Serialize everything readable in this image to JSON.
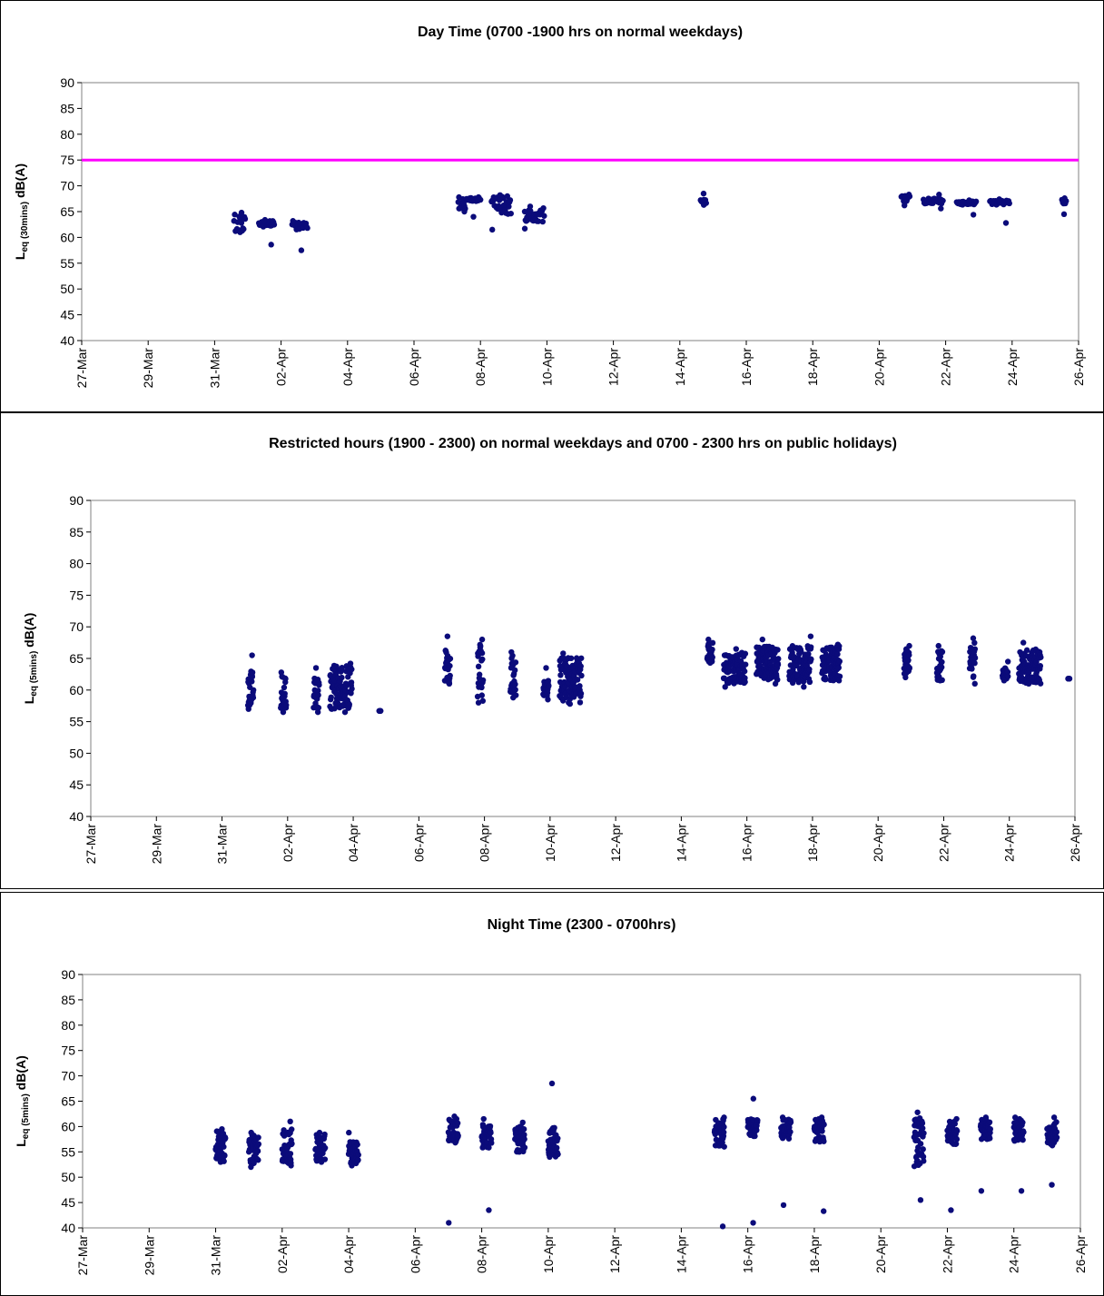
{
  "colors": {
    "points": "#0b0b7a",
    "limit_line": "#ff00ff",
    "axis": "#808080"
  },
  "chart_data": [
    {
      "type": "scatter",
      "title": "Day Time (0700 -1900 hrs on normal weekdays)",
      "ylabel_main": "L",
      "ylabel_sub": "eq (30mins)",
      "ylabel_unit": " dB(A)",
      "ylim": [
        40,
        90
      ],
      "yticks": [
        40,
        45,
        50,
        55,
        60,
        65,
        70,
        75,
        80,
        85,
        90
      ],
      "xlim": [
        "2008-03-27",
        "2008-04-26"
      ],
      "xtick_labels": [
        "27-Mar",
        "29-Mar",
        "31-Mar",
        "02-Apr",
        "04-Apr",
        "06-Apr",
        "08-Apr",
        "10-Apr",
        "12-Apr",
        "14-Apr",
        "16-Apr",
        "18-Apr",
        "20-Apr",
        "22-Apr",
        "24-Apr",
        "26-Apr"
      ],
      "limit_line": 75,
      "clusters": [
        {
          "date": "2008-03-31",
          "hours": [
            14,
            22
          ],
          "low": 61,
          "high": 64.5,
          "min": 61,
          "max": 64.8
        },
        {
          "date": "2008-04-01",
          "hours": [
            8,
            19
          ],
          "low": 62,
          "high": 63.2,
          "min": 58.6,
          "max": 63.4
        },
        {
          "date": "2008-04-02",
          "hours": [
            8,
            19
          ],
          "low": 61.5,
          "high": 63,
          "min": 57.5,
          "max": 63.2
        },
        {
          "date": "2008-04-07",
          "hours": [
            8,
            13
          ],
          "low": 65.5,
          "high": 67.5,
          "min": 65,
          "max": 67.8
        },
        {
          "date": "2008-04-07",
          "hours": [
            14,
            24
          ],
          "low": 67,
          "high": 67.7,
          "min": 64,
          "max": 67.8
        },
        {
          "date": "2008-04-08",
          "hours": [
            8,
            22
          ],
          "low": 64.5,
          "high": 68,
          "min": 61.5,
          "max": 68.2
        },
        {
          "date": "2008-04-09",
          "hours": [
            8,
            22
          ],
          "low": 63,
          "high": 65.8,
          "min": 61.7,
          "max": 66
        },
        {
          "date": "2008-04-14",
          "hours": [
            15,
            19
          ],
          "low": 66.5,
          "high": 67.5,
          "min": 66.3,
          "max": 68.5
        },
        {
          "date": "2008-04-20",
          "hours": [
            16,
            22
          ],
          "low": 67,
          "high": 68.2,
          "min": 66.2,
          "max": 68.3
        },
        {
          "date": "2008-04-21",
          "hours": [
            8,
            22
          ],
          "low": 66.5,
          "high": 67.6,
          "min": 65.6,
          "max": 68.3
        },
        {
          "date": "2008-04-22",
          "hours": [
            8,
            22
          ],
          "low": 66.3,
          "high": 67,
          "min": 64.4,
          "max": 67.2
        },
        {
          "date": "2008-04-23",
          "hours": [
            8,
            22
          ],
          "low": 66.3,
          "high": 67.2,
          "min": 62.8,
          "max": 67.4
        },
        {
          "date": "2008-04-25",
          "hours": [
            12,
            15
          ],
          "low": 66.5,
          "high": 67.5,
          "min": 64.5,
          "max": 67.6
        }
      ]
    },
    {
      "type": "scatter",
      "title": "Restricted hours (1900 - 2300) on normal weekdays and 0700 - 2300 hrs on public holidays)",
      "ylabel_main": "L",
      "ylabel_sub": "eq (5mins)",
      "ylabel_unit": " dB(A)",
      "ylim": [
        40,
        90
      ],
      "yticks": [
        40,
        45,
        50,
        55,
        60,
        65,
        70,
        75,
        80,
        85,
        90
      ],
      "xlim": [
        "2008-03-27",
        "2008-04-26"
      ],
      "xtick_labels": [
        "27-Mar",
        "29-Mar",
        "31-Mar",
        "02-Apr",
        "04-Apr",
        "06-Apr",
        "08-Apr",
        "10-Apr",
        "12-Apr",
        "14-Apr",
        "16-Apr",
        "18-Apr",
        "20-Apr",
        "22-Apr",
        "24-Apr",
        "26-Apr"
      ],
      "clusters": [
        {
          "date": "2008-03-31",
          "hours": [
            19,
            23
          ],
          "low": 57.5,
          "high": 63,
          "min": 57,
          "max": 65.5
        },
        {
          "date": "2008-04-01",
          "hours": [
            19,
            23
          ],
          "low": 57,
          "high": 62.5,
          "min": 56.5,
          "max": 62.8
        },
        {
          "date": "2008-04-02",
          "hours": [
            19,
            23
          ],
          "low": 57,
          "high": 62,
          "min": 56.5,
          "max": 63.5
        },
        {
          "date": "2008-04-03",
          "hours": [
            7,
            23
          ],
          "low": 57,
          "high": 64,
          "min": 56.5,
          "max": 64.2
        },
        {
          "date": "2008-04-04",
          "hours": [
            19,
            20
          ],
          "low": 56.7,
          "high": 56.7,
          "min": 56.7,
          "max": 56.7
        },
        {
          "date": "2008-04-06",
          "hours": [
            19,
            23
          ],
          "low": 61,
          "high": 66.5,
          "min": 61,
          "max": 68.5
        },
        {
          "date": "2008-04-07",
          "hours": [
            19,
            23
          ],
          "low": 58,
          "high": 67.5,
          "min": 58,
          "max": 68
        },
        {
          "date": "2008-04-08",
          "hours": [
            19,
            23
          ],
          "low": 59,
          "high": 65.5,
          "min": 58.8,
          "max": 66
        },
        {
          "date": "2008-04-09",
          "hours": [
            19,
            23
          ],
          "low": 59,
          "high": 61.5,
          "min": 58.5,
          "max": 63.5
        },
        {
          "date": "2008-04-10",
          "hours": [
            7,
            23
          ],
          "low": 58,
          "high": 65.5,
          "min": 57.8,
          "max": 65.8
        },
        {
          "date": "2008-04-14",
          "hours": [
            19,
            23
          ],
          "low": 64.5,
          "high": 67.5,
          "min": 64.3,
          "max": 68
        },
        {
          "date": "2008-04-15",
          "hours": [
            7,
            23
          ],
          "low": 61,
          "high": 66,
          "min": 60.5,
          "max": 66.5
        },
        {
          "date": "2008-04-16",
          "hours": [
            7,
            23
          ],
          "low": 61.5,
          "high": 67,
          "min": 61,
          "max": 68
        },
        {
          "date": "2008-04-17",
          "hours": [
            7,
            23
          ],
          "low": 61,
          "high": 67,
          "min": 60.5,
          "max": 68.5
        },
        {
          "date": "2008-04-18",
          "hours": [
            7,
            20
          ],
          "low": 61.5,
          "high": 67,
          "min": 61.5,
          "max": 67.2
        },
        {
          "date": "2008-04-20",
          "hours": [
            19,
            23
          ],
          "low": 62.5,
          "high": 66.5,
          "min": 62,
          "max": 67
        },
        {
          "date": "2008-04-21",
          "hours": [
            19,
            23
          ],
          "low": 61.5,
          "high": 66.5,
          "min": 61.5,
          "max": 67
        },
        {
          "date": "2008-04-22",
          "hours": [
            19,
            23
          ],
          "low": 62,
          "high": 67.5,
          "min": 61,
          "max": 68.2
        },
        {
          "date": "2008-04-23",
          "hours": [
            19,
            23
          ],
          "low": 61.8,
          "high": 63.5,
          "min": 61.5,
          "max": 64.5
        },
        {
          "date": "2008-04-24",
          "hours": [
            7,
            23
          ],
          "low": 61,
          "high": 66.5,
          "min": 61,
          "max": 67.5
        },
        {
          "date": "2008-04-25",
          "hours": [
            19,
            20
          ],
          "low": 61.8,
          "high": 61.8,
          "min": 61.8,
          "max": 61.8
        }
      ]
    },
    {
      "type": "scatter",
      "title": "Night Time (2300 - 0700hrs)",
      "ylabel_main": "L",
      "ylabel_sub": "eq (5mins)",
      "ylabel_unit": " dB(A)",
      "ylim": [
        40,
        90
      ],
      "yticks": [
        40,
        45,
        50,
        55,
        60,
        65,
        70,
        75,
        80,
        85,
        90
      ],
      "xlim": [
        "2008-03-27",
        "2008-04-26"
      ],
      "xtick_labels": [
        "27-Mar",
        "29-Mar",
        "31-Mar",
        "02-Apr",
        "04-Apr",
        "06-Apr",
        "08-Apr",
        "10-Apr",
        "12-Apr",
        "14-Apr",
        "16-Apr",
        "18-Apr",
        "20-Apr",
        "22-Apr",
        "24-Apr",
        "26-Apr"
      ],
      "clusters": [
        {
          "date": "2008-03-31",
          "hours": [
            0,
            7
          ],
          "low": 53,
          "high": 59.2,
          "min": 53,
          "max": 59.5
        },
        {
          "date": "2008-04-01",
          "hours": [
            0,
            7
          ],
          "low": 52.5,
          "high": 58.5,
          "min": 52,
          "max": 58.8
        },
        {
          "date": "2008-04-02",
          "hours": [
            0,
            7
          ],
          "low": 52.5,
          "high": 59.5,
          "min": 52.3,
          "max": 61
        },
        {
          "date": "2008-04-03",
          "hours": [
            0,
            7
          ],
          "low": 53,
          "high": 58.5,
          "min": 53,
          "max": 58.8
        },
        {
          "date": "2008-04-04",
          "hours": [
            0,
            7
          ],
          "low": 52.5,
          "high": 57,
          "min": 52.3,
          "max": 58.8
        },
        {
          "date": "2008-04-07",
          "hours": [
            0,
            7
          ],
          "low": 56.5,
          "high": 61.5,
          "min": 41,
          "max": 62
        },
        {
          "date": "2008-04-08",
          "hours": [
            0,
            7
          ],
          "low": 55.5,
          "high": 60.5,
          "min": 43.5,
          "max": 61.5
        },
        {
          "date": "2008-04-09",
          "hours": [
            0,
            7
          ],
          "low": 55,
          "high": 60,
          "min": 55,
          "max": 60.8
        },
        {
          "date": "2008-04-10",
          "hours": [
            0,
            7
          ],
          "low": 54,
          "high": 60,
          "min": 54,
          "max": 68.5
        },
        {
          "date": "2008-04-15",
          "hours": [
            0,
            7
          ],
          "low": 56,
          "high": 61.5,
          "min": 40.3,
          "max": 61.8
        },
        {
          "date": "2008-04-16",
          "hours": [
            0,
            7
          ],
          "low": 58,
          "high": 61.5,
          "min": 41,
          "max": 65.5
        },
        {
          "date": "2008-04-17",
          "hours": [
            0,
            7
          ],
          "low": 57.5,
          "high": 61.5,
          "min": 44.5,
          "max": 61.8
        },
        {
          "date": "2008-04-18",
          "hours": [
            0,
            7
          ],
          "low": 57,
          "high": 61.5,
          "min": 43.3,
          "max": 61.8
        },
        {
          "date": "2008-04-21",
          "hours": [
            0,
            7
          ],
          "low": 52,
          "high": 62,
          "min": 45.5,
          "max": 62.8
        },
        {
          "date": "2008-04-22",
          "hours": [
            0,
            7
          ],
          "low": 56.5,
          "high": 61,
          "min": 43.5,
          "max": 61.5
        },
        {
          "date": "2008-04-23",
          "hours": [
            0,
            7
          ],
          "low": 57.5,
          "high": 61.5,
          "min": 47.3,
          "max": 61.8
        },
        {
          "date": "2008-04-24",
          "hours": [
            0,
            7
          ],
          "low": 57,
          "high": 61.5,
          "min": 47.3,
          "max": 61.8
        },
        {
          "date": "2008-04-25",
          "hours": [
            0,
            7
          ],
          "low": 56,
          "high": 61.5,
          "min": 48.5,
          "max": 61.8
        }
      ]
    }
  ]
}
